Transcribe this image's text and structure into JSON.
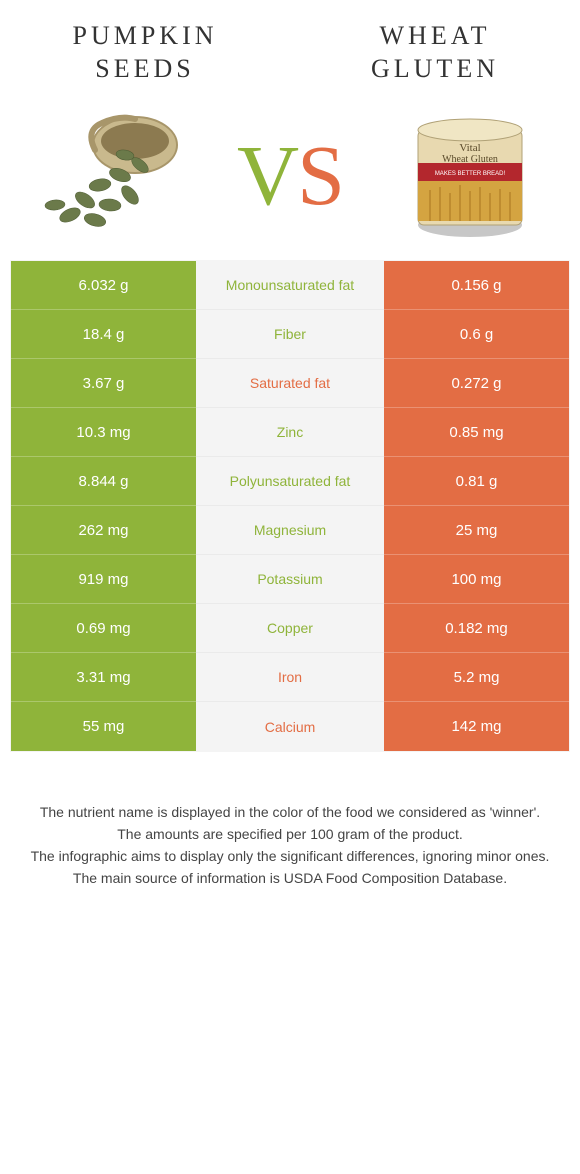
{
  "colors": {
    "left": "#8fb43a",
    "right": "#e36d44",
    "mid_bg": "#f4f4f4"
  },
  "titles": {
    "left_line1": "PUMPKIN",
    "left_line2": "SEEDS",
    "right_line1": "WHEAT",
    "right_line2": "GLUTEN"
  },
  "vs": {
    "v": "V",
    "s": "S"
  },
  "rows": [
    {
      "left": "6.032 g",
      "mid": "Monounsaturated fat",
      "right": "0.156 g",
      "winner": "left"
    },
    {
      "left": "18.4 g",
      "mid": "Fiber",
      "right": "0.6 g",
      "winner": "left"
    },
    {
      "left": "3.67 g",
      "mid": "Saturated fat",
      "right": "0.272 g",
      "winner": "right"
    },
    {
      "left": "10.3 mg",
      "mid": "Zinc",
      "right": "0.85 mg",
      "winner": "left"
    },
    {
      "left": "8.844 g",
      "mid": "Polyunsaturated fat",
      "right": "0.81 g",
      "winner": "left"
    },
    {
      "left": "262 mg",
      "mid": "Magnesium",
      "right": "25 mg",
      "winner": "left"
    },
    {
      "left": "919 mg",
      "mid": "Potassium",
      "right": "100 mg",
      "winner": "left"
    },
    {
      "left": "0.69 mg",
      "mid": "Copper",
      "right": "0.182 mg",
      "winner": "left"
    },
    {
      "left": "3.31 mg",
      "mid": "Iron",
      "right": "5.2 mg",
      "winner": "right"
    },
    {
      "left": "55 mg",
      "mid": "Calcium",
      "right": "142 mg",
      "winner": "right"
    }
  ],
  "footer": [
    "The nutrient name is displayed in the color of the food we considered as 'winner'.",
    "The amounts are specified per 100 gram of the product.",
    "The infographic aims to display only the significant differences, ignoring minor ones.",
    "The main source of information is USDA Food Composition Database."
  ]
}
